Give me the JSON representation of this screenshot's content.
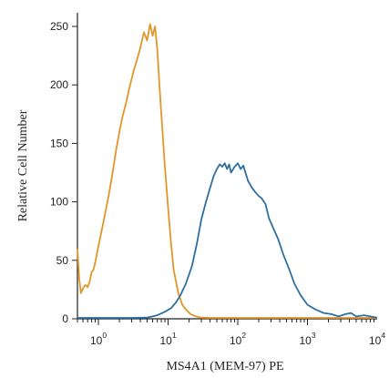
{
  "chart_data": {
    "type": "line",
    "title": "",
    "xlabel": "MS4A1 (MEM-97) PE",
    "ylabel": "Relative Cell Number",
    "x_scale": "log",
    "x_range": [
      0.5,
      10000
    ],
    "y_range": [
      0,
      255
    ],
    "x_ticks": [
      {
        "value": 1,
        "base": "10",
        "exp": "0"
      },
      {
        "value": 10,
        "base": "10",
        "exp": "1"
      },
      {
        "value": 100,
        "base": "10",
        "exp": "2"
      },
      {
        "value": 1000,
        "base": "10",
        "exp": "3"
      },
      {
        "value": 10000,
        "base": "10",
        "exp": "4"
      }
    ],
    "y_ticks": [
      {
        "value": 0,
        "label": "0"
      },
      {
        "value": 50,
        "label": "50"
      },
      {
        "value": 100,
        "label": "100"
      },
      {
        "value": 150,
        "label": "150"
      },
      {
        "value": 200,
        "label": "200"
      },
      {
        "value": 250,
        "label": "250"
      }
    ],
    "grid": false,
    "legend": "none",
    "series": [
      {
        "color": "#e0962a",
        "points": [
          [
            0.5,
            60
          ],
          [
            0.53,
            35
          ],
          [
            0.56,
            22
          ],
          [
            0.6,
            26
          ],
          [
            0.65,
            29
          ],
          [
            0.7,
            27
          ],
          [
            0.75,
            32
          ],
          [
            0.8,
            40
          ],
          [
            0.85,
            42
          ],
          [
            0.9,
            48
          ],
          [
            1.0,
            62
          ],
          [
            1.2,
            85
          ],
          [
            1.4,
            105
          ],
          [
            1.6,
            125
          ],
          [
            1.8,
            145
          ],
          [
            2.0,
            160
          ],
          [
            2.2,
            172
          ],
          [
            2.5,
            185
          ],
          [
            2.8,
            198
          ],
          [
            3.2,
            212
          ],
          [
            3.6,
            222
          ],
          [
            4.0,
            232
          ],
          [
            4.5,
            245
          ],
          [
            5.0,
            238
          ],
          [
            5.5,
            252
          ],
          [
            6.0,
            242
          ],
          [
            6.5,
            250
          ],
          [
            7.0,
            230
          ],
          [
            7.5,
            200
          ],
          [
            8.0,
            175
          ],
          [
            9.0,
            130
          ],
          [
            10.0,
            95
          ],
          [
            11.0,
            65
          ],
          [
            12.0,
            42
          ],
          [
            14.0,
            22
          ],
          [
            16.0,
            12
          ],
          [
            18.0,
            8
          ],
          [
            21.0,
            4
          ],
          [
            25.0,
            2
          ],
          [
            30.0,
            1
          ],
          [
            40.0,
            0
          ],
          [
            60.0,
            0
          ],
          [
            100,
            0
          ],
          [
            1000,
            0
          ],
          [
            10000,
            0
          ]
        ]
      },
      {
        "color": "#2f6fa0",
        "points": [
          [
            0.5,
            0
          ],
          [
            3,
            0
          ],
          [
            5,
            1
          ],
          [
            7,
            3
          ],
          [
            9,
            6
          ],
          [
            11,
            9
          ],
          [
            13,
            14
          ],
          [
            15,
            20
          ],
          [
            18,
            30
          ],
          [
            22,
            45
          ],
          [
            26,
            65
          ],
          [
            30,
            85
          ],
          [
            35,
            100
          ],
          [
            40,
            112
          ],
          [
            45,
            122
          ],
          [
            50,
            128
          ],
          [
            55,
            132
          ],
          [
            60,
            130
          ],
          [
            65,
            133
          ],
          [
            70,
            128
          ],
          [
            75,
            132
          ],
          [
            80,
            125
          ],
          [
            90,
            130
          ],
          [
            100,
            133
          ],
          [
            110,
            128
          ],
          [
            120,
            131
          ],
          [
            140,
            118
          ],
          [
            160,
            112
          ],
          [
            180,
            108
          ],
          [
            200,
            105
          ],
          [
            220,
            103
          ],
          [
            250,
            98
          ],
          [
            280,
            86
          ],
          [
            320,
            78
          ],
          [
            380,
            68
          ],
          [
            450,
            55
          ],
          [
            550,
            42
          ],
          [
            650,
            30
          ],
          [
            800,
            20
          ],
          [
            1000,
            12
          ],
          [
            1300,
            8
          ],
          [
            1700,
            5
          ],
          [
            2200,
            4
          ],
          [
            2800,
            2
          ],
          [
            3500,
            4
          ],
          [
            4200,
            5
          ],
          [
            5000,
            2
          ],
          [
            6500,
            3
          ],
          [
            8000,
            2
          ],
          [
            10000,
            1
          ]
        ]
      }
    ]
  }
}
